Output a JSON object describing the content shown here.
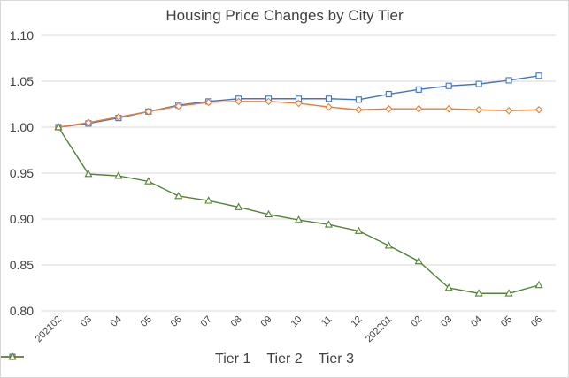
{
  "chart_data": {
    "type": "line",
    "title": "Housing Price Changes by City Tier",
    "xlabel": "",
    "ylabel": "",
    "categories": [
      "202102",
      "03",
      "04",
      "05",
      "06",
      "07",
      "08",
      "09",
      "10",
      "11",
      "12",
      "202201",
      "02",
      "03",
      "04",
      "05",
      "06"
    ],
    "yticks": [
      "0.80",
      "0.85",
      "0.90",
      "0.95",
      "1.00",
      "1.05",
      "1.10"
    ],
    "ylim": [
      0.8,
      1.1
    ],
    "grid": "horizontal",
    "legend_position": "bottom",
    "series": [
      {
        "name": "Tier 1",
        "color": "#4472c4",
        "marker": "square",
        "values": [
          1.0,
          1.004,
          1.01,
          1.017,
          1.024,
          1.028,
          1.031,
          1.031,
          1.031,
          1.031,
          1.03,
          1.036,
          1.041,
          1.045,
          1.047,
          1.051,
          1.056
        ]
      },
      {
        "name": "Tier 2",
        "color": "#ed7d31",
        "marker": "diamond",
        "values": [
          1.0,
          1.005,
          1.011,
          1.017,
          1.023,
          1.027,
          1.028,
          1.028,
          1.026,
          1.022,
          1.019,
          1.02,
          1.02,
          1.02,
          1.019,
          1.018,
          1.019
        ]
      },
      {
        "name": "Tier 3",
        "color": "#548235",
        "marker": "triangle",
        "values": [
          1.0,
          0.949,
          0.947,
          0.941,
          0.925,
          0.92,
          0.913,
          0.905,
          0.899,
          0.894,
          0.887,
          0.871,
          0.854,
          0.825,
          0.819,
          0.819,
          0.828
        ]
      }
    ]
  }
}
